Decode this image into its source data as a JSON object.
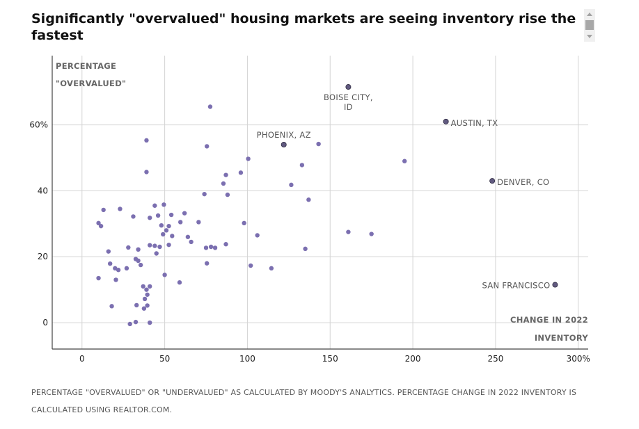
{
  "title": "Significantly \"overvalued\" housing markets are seeing inventory rise the fastest",
  "footnote": "PERCENTAGE \"OVERVALUED\" OR \"UNDERVALUED\" AS CALCULATED BY MOODY'S ANALYTICS. PERCENTAGE CHANGE IN 2022 INVENTORY IS CALCULATED USING REALTOR.COM.",
  "chart_data": {
    "type": "scatter",
    "ylabel_lines": [
      "PERCENTAGE",
      "\"OVERVALUED\""
    ],
    "xlabel_lines": [
      "CHANGE IN 2022",
      "INVENTORY"
    ],
    "xlim": [
      -18,
      306
    ],
    "ylim": [
      -8,
      81
    ],
    "grid": true,
    "x_ticks": [
      {
        "value": 0,
        "label": "0"
      },
      {
        "value": 50,
        "label": "50"
      },
      {
        "value": 100,
        "label": "100"
      },
      {
        "value": 150,
        "label": "150"
      },
      {
        "value": 200,
        "label": "200"
      },
      {
        "value": 250,
        "label": "250"
      },
      {
        "value": 300,
        "label": "300%"
      }
    ],
    "y_ticks": [
      {
        "value": 0,
        "label": "0"
      },
      {
        "value": 20,
        "label": "20"
      },
      {
        "value": 40,
        "label": "40"
      },
      {
        "value": 60,
        "label": "60%"
      }
    ],
    "point_color": "#7b6fb0",
    "highlight_color": "#615a80",
    "highlighted": [
      {
        "x": 161,
        "y": 71.5,
        "label": [
          "BOISE CITY,",
          "ID"
        ]
      },
      {
        "x": 220,
        "y": 61,
        "label": [
          "AUSTIN, TX"
        ]
      },
      {
        "x": 122,
        "y": 54,
        "label": [
          "PHOENIX, AZ"
        ]
      },
      {
        "x": 248,
        "y": 43,
        "label": [
          "DENVER, CO"
        ]
      },
      {
        "x": 286,
        "y": 11.5,
        "label": [
          "SAN FRANCISCO"
        ]
      }
    ],
    "points": [
      [
        77.5,
        65.5
      ],
      [
        39,
        55.3
      ],
      [
        75.5,
        53.5
      ],
      [
        143,
        54.2
      ],
      [
        100.5,
        49.7
      ],
      [
        195,
        49
      ],
      [
        39,
        45.7
      ],
      [
        96,
        45.5
      ],
      [
        87,
        44.8
      ],
      [
        133,
        47.8
      ],
      [
        85.5,
        42.2
      ],
      [
        126.5,
        41.8
      ],
      [
        74,
        39
      ],
      [
        88,
        38.8
      ],
      [
        137,
        37.3
      ],
      [
        49.5,
        35.8
      ],
      [
        44,
        35.5
      ],
      [
        13,
        34.2
      ],
      [
        23,
        34.5
      ],
      [
        62,
        33.2
      ],
      [
        54,
        32.7
      ],
      [
        46,
        32.5
      ],
      [
        31,
        32.2
      ],
      [
        41,
        31.8
      ],
      [
        59.5,
        30.5
      ],
      [
        70.5,
        30.5
      ],
      [
        98,
        30.2
      ],
      [
        10,
        30.2
      ],
      [
        11.5,
        29.3
      ],
      [
        48,
        29.5
      ],
      [
        52.5,
        29.3
      ],
      [
        51,
        28
      ],
      [
        49,
        26.8
      ],
      [
        54.5,
        26.3
      ],
      [
        64,
        26
      ],
      [
        106,
        26.5
      ],
      [
        161,
        27.5
      ],
      [
        175,
        26.9
      ],
      [
        66,
        24.5
      ],
      [
        52.5,
        23.6
      ],
      [
        87,
        23.8
      ],
      [
        41,
        23.5
      ],
      [
        44,
        23.3
      ],
      [
        47,
        23
      ],
      [
        45,
        21
      ],
      [
        28,
        22.8
      ],
      [
        34,
        22.2
      ],
      [
        16,
        21.6
      ],
      [
        75,
        22.7
      ],
      [
        78,
        23
      ],
      [
        80.5,
        22.7
      ],
      [
        135,
        22.4
      ],
      [
        32.5,
        19.3
      ],
      [
        34,
        18.8
      ],
      [
        35.5,
        17.5
      ],
      [
        17,
        17.9
      ],
      [
        20,
        16.5
      ],
      [
        22,
        16
      ],
      [
        27,
        16.5
      ],
      [
        75.5,
        18
      ],
      [
        102,
        17.3
      ],
      [
        114.5,
        16.5
      ],
      [
        10,
        13.5
      ],
      [
        20.5,
        13
      ],
      [
        50,
        14.5
      ],
      [
        59,
        12.2
      ],
      [
        37,
        11
      ],
      [
        41,
        11
      ],
      [
        39,
        10
      ],
      [
        39.5,
        8.5
      ],
      [
        38,
        7.2
      ],
      [
        18,
        5
      ],
      [
        33,
        5.3
      ],
      [
        37.5,
        4.3
      ],
      [
        39.5,
        5.2
      ],
      [
        32.5,
        0.2
      ],
      [
        29,
        -0.4
      ],
      [
        41,
        0
      ]
    ]
  }
}
